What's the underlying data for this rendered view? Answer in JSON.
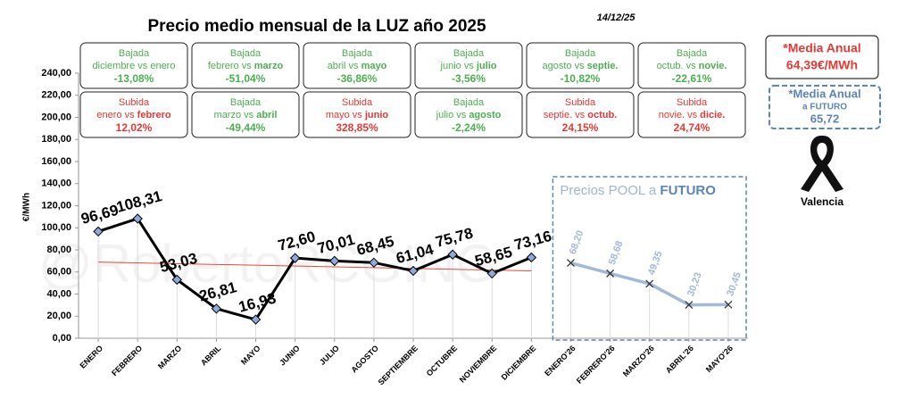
{
  "chart_data": {
    "type": "line",
    "title": "Precio medio mensual de la LUZ año 2025",
    "date": "14/12/25",
    "y_label": "€/MWh",
    "watermark": "@RobertoRCGING",
    "categories": [
      "ENERO",
      "FEBRERO",
      "MARZO",
      "ABRIL",
      "MAYO",
      "JUNIO",
      "JULIO",
      "AGOSTO",
      "SEPTIEMBRE",
      "OCTUBRE",
      "NOVIEMBRE",
      "DICIEMBRE",
      "ENERO'26",
      "FEBRERO'26",
      "MARZO'26",
      "ABRIL'26",
      "MAYO'26"
    ],
    "ylim": [
      0,
      240
    ],
    "yticks": [
      {
        "value": 0,
        "label": "0,00"
      },
      {
        "value": 20,
        "label": "20,00"
      },
      {
        "value": 40,
        "label": "40,00"
      },
      {
        "value": 60,
        "label": "60,00"
      },
      {
        "value": 80,
        "label": "80,00"
      },
      {
        "value": 100,
        "label": "100,00"
      },
      {
        "value": 120,
        "label": "120,00"
      },
      {
        "value": 140,
        "label": "140,00"
      },
      {
        "value": 160,
        "label": "160,00"
      },
      {
        "value": 180,
        "label": "180,00"
      },
      {
        "value": 200,
        "label": "200,00"
      },
      {
        "value": 220,
        "label": "220,00"
      },
      {
        "value": 240,
        "label": "240,00"
      }
    ],
    "series": [
      {
        "color": "#000000",
        "marker": "diamond",
        "marker_color": "#8eaadb",
        "values": [
          96.69,
          108.31,
          53.03,
          26.81,
          16.93,
          72.6,
          70.01,
          68.45,
          61.04,
          75.78,
          58.65,
          73.16,
          null,
          null,
          null,
          null,
          null
        ],
        "value_labels": [
          "96,69",
          "108,31",
          "53,03",
          "26,81",
          "16,93",
          "72,60",
          "70,01",
          "68,45",
          "61,04",
          "75,78",
          "58,65",
          "73,16",
          null,
          null,
          null,
          null,
          null
        ]
      },
      {
        "color": "#a4b8dc",
        "marker": "x",
        "marker_color": "#333333",
        "values": [
          null,
          null,
          null,
          null,
          null,
          null,
          null,
          null,
          null,
          null,
          null,
          null,
          68.2,
          58.68,
          49.35,
          30.23,
          30.45
        ],
        "value_labels": [
          null,
          null,
          null,
          null,
          null,
          null,
          null,
          null,
          null,
          null,
          null,
          null,
          "68,20",
          "58,68",
          "49,35",
          "30,23",
          "30,45"
        ]
      }
    ],
    "trendline": {
      "color": "#e8473c",
      "start": 69,
      "end": 61
    },
    "future_box": {
      "title_parts": [
        "Precios POOL a ",
        "FUTURO"
      ],
      "color": "#5b84b8"
    },
    "boxes": [
      {
        "kind": "Bajada",
        "parts": [
          "diciembre vs enero",
          ""
        ],
        "value": "-13,08%",
        "color": "#4caf50"
      },
      {
        "kind": "Bajada",
        "parts": [
          "febrero vs ",
          "marzo"
        ],
        "value": "-51,04%",
        "color": "#4caf50"
      },
      {
        "kind": "Bajada",
        "parts": [
          "abril vs ",
          "mayo"
        ],
        "value": "-36,86%",
        "color": "#4caf50"
      },
      {
        "kind": "Bajada",
        "parts": [
          "junio vs ",
          "julio"
        ],
        "value": "-3,56%",
        "color": "#4caf50"
      },
      {
        "kind": "Bajada",
        "parts": [
          "agosto vs ",
          "septie."
        ],
        "value": "-10,82%",
        "color": "#4caf50"
      },
      {
        "kind": "Bajada",
        "parts": [
          "octub. vs ",
          "novie."
        ],
        "value": "-22,61%",
        "color": "#4caf50"
      },
      {
        "kind": "Subida",
        "parts": [
          "enero vs ",
          "febrero"
        ],
        "value": "12,02%",
        "color": "#e53935"
      },
      {
        "kind": "Bajada",
        "parts": [
          "marzo vs ",
          "abril"
        ],
        "value": "-49,44%",
        "color": "#4caf50"
      },
      {
        "kind": "Subida",
        "parts": [
          "mayo vs ",
          "junio"
        ],
        "value": "328,85%",
        "color": "#e53935"
      },
      {
        "kind": "Bajada",
        "parts": [
          "julio vs ",
          "agosto"
        ],
        "value": "-2,24%",
        "color": "#4caf50"
      },
      {
        "kind": "Subida",
        "parts": [
          "septie. vs ",
          "octub."
        ],
        "value": "24,15%",
        "color": "#e53935"
      },
      {
        "kind": "Subida",
        "parts": [
          "novie. vs ",
          "dicie."
        ],
        "value": "24,74%",
        "color": "#e53935"
      }
    ],
    "media_anual": {
      "label": "*Media Anual",
      "value": "64,39€/MWh",
      "color": "#e53935"
    },
    "media_futuro": {
      "lines": [
        "*Media Anual",
        "a FUTURO",
        "65,72"
      ],
      "color": "#5b84b8"
    },
    "ribbon_label": "Valencia"
  }
}
